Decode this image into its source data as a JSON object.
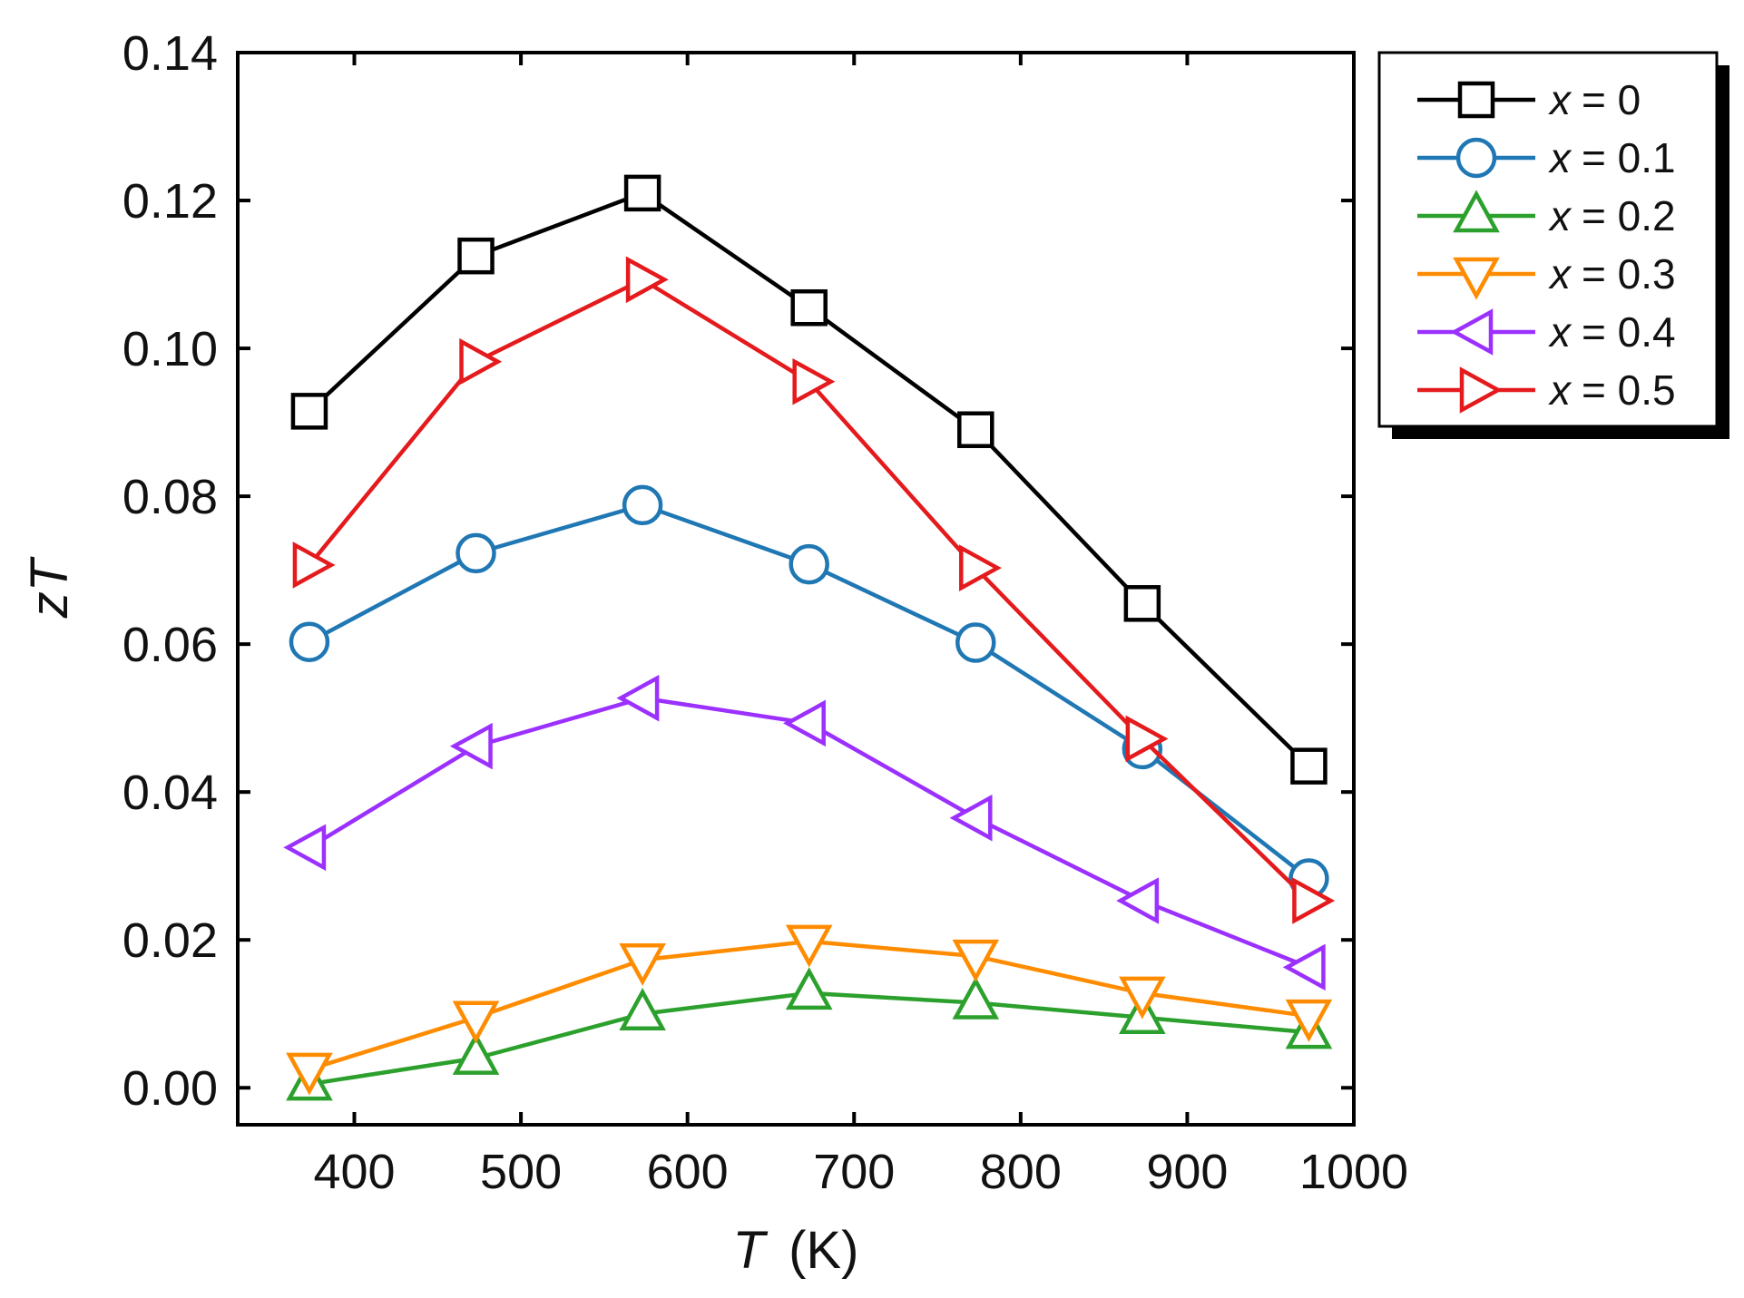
{
  "chart_data": {
    "type": "line",
    "title": "",
    "xlabel": {
      "symbol": "T",
      "unit": "(K)"
    },
    "ylabel": {
      "symbol": "zT"
    },
    "xlim": [
      330,
      1000
    ],
    "ylim": [
      -0.005,
      0.14
    ],
    "x_ticks": [
      400,
      500,
      600,
      700,
      800,
      900,
      1000
    ],
    "x_tick_labels": [
      "400",
      "500",
      "600",
      "700",
      "800",
      "900",
      "1000"
    ],
    "y_ticks": [
      0.0,
      0.02,
      0.04,
      0.06,
      0.08,
      0.1,
      0.12,
      0.14
    ],
    "y_tick_labels": [
      "0.00",
      "0.02",
      "0.04",
      "0.06",
      "0.08",
      "0.10",
      "0.12",
      "0.14"
    ],
    "legend_position": "top-right outside",
    "x": [
      373,
      473,
      573,
      673,
      773,
      873,
      973
    ],
    "series": [
      {
        "name": "x = 0",
        "var": "x",
        "eq": "= 0",
        "color": "#000000",
        "marker": "square",
        "values": [
          0.0915,
          0.1125,
          0.121,
          0.1055,
          0.089,
          0.0655,
          0.0435
        ]
      },
      {
        "name": "x = 0.1",
        "var": "x",
        "eq": "= 0.1",
        "color": "#1f77b4",
        "marker": "circle",
        "values": [
          0.0603,
          0.0723,
          0.0788,
          0.0708,
          0.0602,
          0.0458,
          0.0283
        ]
      },
      {
        "name": "x = 0.2",
        "var": "x",
        "eq": "= 0.2",
        "color": "#2ca02c",
        "marker": "triangle-up",
        "values": [
          0.0005,
          0.004,
          0.01,
          0.0128,
          0.0115,
          0.0095,
          0.0075
        ]
      },
      {
        "name": "x = 0.3",
        "var": "x",
        "eq": "= 0.3",
        "color": "#ff8c00",
        "marker": "triangle-down",
        "values": [
          0.0025,
          0.0095,
          0.0173,
          0.0198,
          0.0178,
          0.0128,
          0.0097
        ]
      },
      {
        "name": "x = 0.4",
        "var": "x",
        "eq": "= 0.4",
        "color": "#9b30ff",
        "marker": "triangle-left",
        "values": [
          0.0325,
          0.0462,
          0.0527,
          0.0493,
          0.0365,
          0.0253,
          0.0163
        ]
      },
      {
        "name": "x = 0.5",
        "var": "x",
        "eq": "= 0.5",
        "color": "#e41a1c",
        "marker": "triangle-right",
        "values": [
          0.0707,
          0.0982,
          0.1093,
          0.0955,
          0.0703,
          0.0472,
          0.0253
        ]
      }
    ]
  }
}
